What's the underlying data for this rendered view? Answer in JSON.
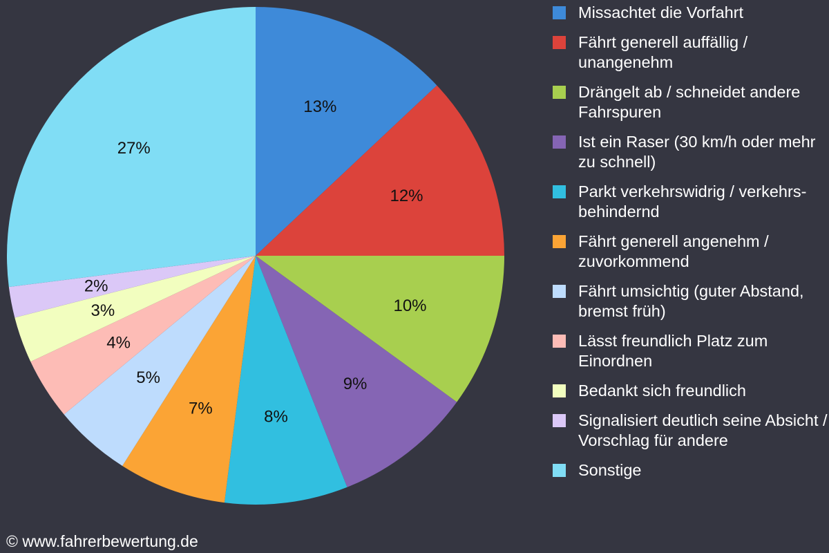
{
  "chart_data": {
    "type": "pie",
    "title": "",
    "start_angle_deg": 0,
    "direction": "clockwise",
    "legend_position": "right",
    "slices": [
      {
        "label": "Missachtet die Vorfahrt",
        "value": 13,
        "value_label": "13%",
        "color": "#3e8ad9"
      },
      {
        "label": "Fährt generell auffällig / unangenehm",
        "value": 12,
        "value_label": "12%",
        "color": "#dc433b"
      },
      {
        "label": "Drängelt ab / schneidet andere Fahrspuren",
        "value": 10,
        "value_label": "10%",
        "color": "#a8cf4f"
      },
      {
        "label": "Ist ein Raser (30 km/h oder mehr zu schnell)",
        "value": 9,
        "value_label": "9%",
        "color": "#8565b4"
      },
      {
        "label": "Parkt verkehrswidrig / verkehrs-behindernd",
        "value": 8,
        "value_label": "8%",
        "color": "#31bfe0"
      },
      {
        "label": "Fährt generell angenehm / zuvorkommend",
        "value": 7,
        "value_label": "7%",
        "color": "#fba435"
      },
      {
        "label": "Fährt umsichtig (guter Abstand, bremst früh)",
        "value": 5,
        "value_label": "5%",
        "color": "#bedcfd"
      },
      {
        "label": "Lässt freundlich Platz zum Einordnen",
        "value": 4,
        "value_label": "4%",
        "color": "#fdbcb6"
      },
      {
        "label": "Bedankt sich freundlich",
        "value": 3,
        "value_label": "3%",
        "color": "#f2febf"
      },
      {
        "label": "Signalisiert deutlich seine Absicht / Vorschlag für andere",
        "value": 2,
        "value_label": "2%",
        "color": "#dbc8f7"
      },
      {
        "label": "Sonstige",
        "value": 27,
        "value_label": "27%",
        "color": "#80ddf5"
      }
    ]
  },
  "legend": {
    "items": [
      {
        "text": "Missachtet die Vorfahrt",
        "color": "#3e8ad9"
      },
      {
        "text": "Fährt generell auffällig / unangenehm",
        "color": "#dc433b"
      },
      {
        "text": "Drängelt ab / schneidet andere Fahrspuren",
        "color": "#a8cf4f"
      },
      {
        "text": "Ist ein Raser (30 km/h oder mehr zu schnell)",
        "color": "#8565b4"
      },
      {
        "text": "Parkt verkehrswidrig / verkehrs-behindernd",
        "color": "#31bfe0"
      },
      {
        "text": "Fährt generell angenehm / zuvorkommend",
        "color": "#fba435"
      },
      {
        "text": "Fährt umsichtig (guter Abstand, bremst früh)",
        "color": "#bedcfd"
      },
      {
        "text": "Lässt freundlich Platz zum Einordnen",
        "color": "#fdbcb6"
      },
      {
        "text": "Bedankt sich freundlich",
        "color": "#f2febf"
      },
      {
        "text": "Signalisiert deutlich seine Absicht / Vorschlag für andere",
        "color": "#dbc8f7"
      },
      {
        "text": "Sonstige",
        "color": "#80ddf5"
      }
    ]
  },
  "credit": "© www.fahrerbewertung.de",
  "colors": {
    "background": "#353641",
    "legend_text": "#ffffff",
    "slice_label_text": "#111111"
  }
}
